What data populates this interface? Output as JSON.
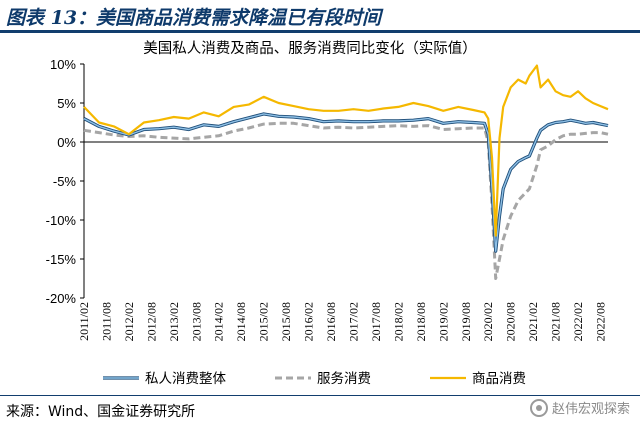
{
  "figure": {
    "title": "图表 13：美国商品消费需求降温已有段时间",
    "source": "来源：Wind、国金证券研究所",
    "watermark": "赵伟宏观探索"
  },
  "chart_data": {
    "type": "line",
    "title": "美国私人消费及商品、服务消费同比变化（实际值）",
    "y_tick_labels": [
      "10%",
      "5%",
      "0%",
      "-5%",
      "-10%",
      "-15%",
      "-20%"
    ],
    "y_ticks": [
      10,
      5,
      0,
      -5,
      -10,
      -15,
      -20
    ],
    "ylim": [
      -20,
      10
    ],
    "y_unit": "%",
    "x_tick_labels": [
      "2011/02",
      "2011/08",
      "2012/02",
      "2012/08",
      "2013/02",
      "2013/08",
      "2014/02",
      "2014/08",
      "2015/02",
      "2015/08",
      "2016/02",
      "2016/08",
      "2017/02",
      "2017/08",
      "2018/02",
      "2018/08",
      "2019/02",
      "2019/08",
      "2020/02",
      "2020/08",
      "2021/02",
      "2021/08",
      "2022/02",
      "2022/08"
    ],
    "x_range": [
      "2011/02",
      "2022/10"
    ],
    "grid": false,
    "legend_position": "bottom",
    "colors": {
      "total": "#3a7cb8",
      "services": "#a6a6a6",
      "goods": "#f5b800"
    },
    "x": [
      "2011/02",
      "2011/06",
      "2011/10",
      "2012/02",
      "2012/06",
      "2012/10",
      "2013/02",
      "2013/06",
      "2013/10",
      "2014/02",
      "2014/06",
      "2014/10",
      "2015/02",
      "2015/06",
      "2015/10",
      "2016/02",
      "2016/06",
      "2016/10",
      "2017/02",
      "2017/06",
      "2017/10",
      "2018/02",
      "2018/06",
      "2018/10",
      "2019/02",
      "2019/06",
      "2019/10",
      "2020/01",
      "2020/02",
      "2020/03",
      "2020/04",
      "2020/05",
      "2020/06",
      "2020/08",
      "2020/10",
      "2020/12",
      "2021/01",
      "2021/03",
      "2021/04",
      "2021/06",
      "2021/08",
      "2021/10",
      "2021/12",
      "2022/02",
      "2022/04",
      "2022/06",
      "2022/08",
      "2022/10"
    ],
    "series": [
      {
        "name": "私人消费整体",
        "key": "total",
        "style": "solid",
        "values": [
          3.0,
          2.0,
          1.4,
          0.9,
          1.6,
          1.7,
          1.9,
          1.6,
          2.2,
          2.0,
          2.6,
          3.1,
          3.6,
          3.3,
          3.2,
          3.0,
          2.6,
          2.7,
          2.6,
          2.6,
          2.7,
          2.7,
          2.8,
          3.0,
          2.4,
          2.6,
          2.5,
          2.4,
          1.0,
          -6.0,
          -14.0,
          -9.5,
          -6.0,
          -3.5,
          -2.5,
          -2.0,
          -1.8,
          0.5,
          1.5,
          2.2,
          2.5,
          2.6,
          2.8,
          2.6,
          2.4,
          2.5,
          2.3,
          2.1
        ]
      },
      {
        "name": "服务消费",
        "key": "services",
        "style": "dashed",
        "values": [
          1.5,
          1.2,
          0.9,
          0.7,
          0.8,
          0.6,
          0.5,
          0.4,
          0.6,
          0.8,
          1.4,
          1.8,
          2.3,
          2.4,
          2.4,
          2.1,
          1.8,
          1.9,
          1.8,
          1.9,
          2.0,
          2.1,
          2.0,
          2.1,
          1.6,
          1.7,
          1.8,
          1.8,
          0.0,
          -8.0,
          -17.5,
          -15.0,
          -12.5,
          -9.5,
          -7.5,
          -6.5,
          -6.0,
          -3.0,
          -1.0,
          -0.5,
          0.3,
          0.8,
          1.0,
          1.0,
          1.1,
          1.2,
          1.2,
          1.0
        ]
      },
      {
        "name": "商品消费",
        "key": "goods",
        "style": "solid",
        "values": [
          4.5,
          2.5,
          2.0,
          1.0,
          2.5,
          2.8,
          3.2,
          3.0,
          3.8,
          3.3,
          4.5,
          4.8,
          5.8,
          5.0,
          4.6,
          4.2,
          4.0,
          4.0,
          4.2,
          4.0,
          4.3,
          4.5,
          5.0,
          4.6,
          4.0,
          4.5,
          4.1,
          3.8,
          3.0,
          -2.0,
          -12.0,
          0.5,
          4.5,
          7.0,
          8.0,
          7.5,
          8.5,
          9.8,
          7.0,
          8.0,
          6.5,
          6.0,
          5.8,
          6.5,
          5.6,
          5.0,
          4.6,
          4.2
        ]
      }
    ]
  }
}
